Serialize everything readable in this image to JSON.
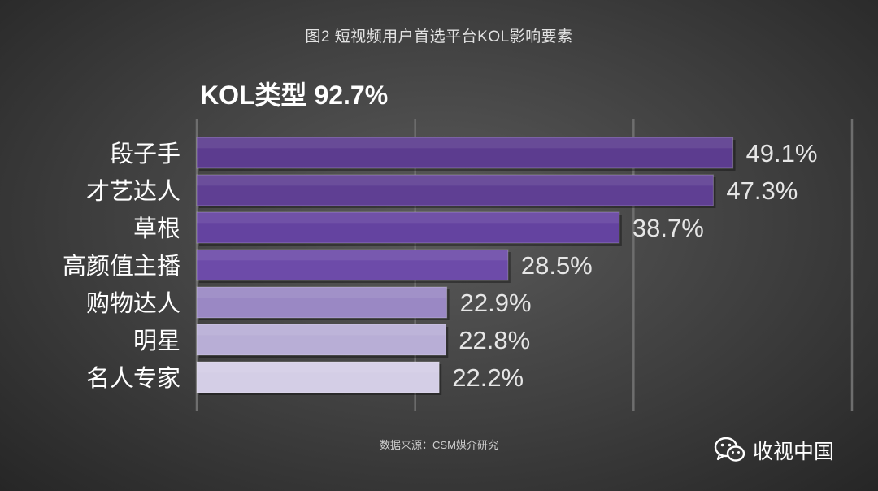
{
  "title": "图2 短视频用户首选平台KOL影响要素",
  "subtitle": "KOL类型 92.7%",
  "source": "数据来源：CSM媒介研究",
  "brand": {
    "icon": "wechat-icon",
    "name": "收视中国"
  },
  "colors": [
    "#5c3c8f",
    "#5f3f93",
    "#6443a0",
    "#6d4ba9",
    "#9a88c4",
    "#b8aed6",
    "#d4cee6"
  ],
  "chart_data": {
    "type": "bar",
    "orientation": "horizontal",
    "title": "图2 短视频用户首选平台KOL影响要素",
    "subtitle": "KOL类型 92.7%",
    "categories": [
      "段子手",
      "才艺达人",
      "草根",
      "高颜值主播",
      "购物达人",
      "明星",
      "名人专家"
    ],
    "values": [
      49.1,
      47.3,
      38.7,
      28.5,
      22.9,
      22.8,
      22.2
    ],
    "value_labels": [
      "49.1%",
      "47.3%",
      "38.7%",
      "28.5%",
      "22.9%",
      "22.8%",
      "22.2%"
    ],
    "xlim": [
      0,
      60
    ],
    "grid": true,
    "legend": "none"
  }
}
